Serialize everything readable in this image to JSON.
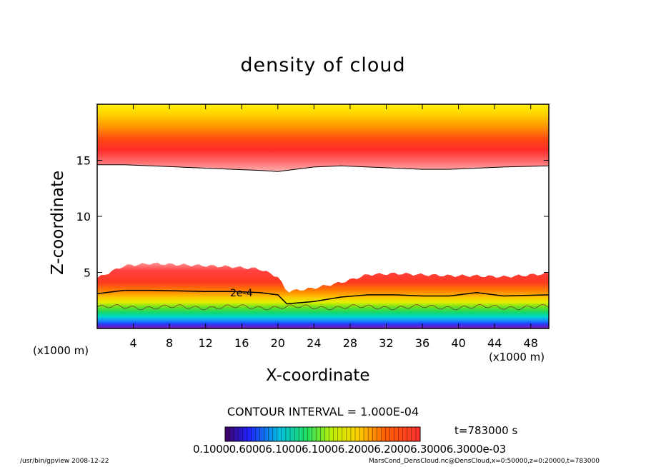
{
  "chart_data": {
    "type": "heatmap",
    "title": "density of cloud",
    "xlabel": "X-coordinate",
    "ylabel": "Z-coordinate",
    "x_unit_left": "(x1000 m)",
    "x_unit_right": "(x1000 m)",
    "xlim": [
      0,
      50
    ],
    "ylim": [
      0,
      20
    ],
    "x_ticks": [
      "4",
      "8",
      "12",
      "16",
      "20",
      "24",
      "28",
      "32",
      "36",
      "40",
      "44",
      "48"
    ],
    "y_ticks": [
      "5",
      "10",
      "15"
    ],
    "contour_interval": "CONTOUR INTERVAL = 1.000E-04",
    "contour_labels": [
      "2e-4"
    ],
    "time": "t=783000 s",
    "colorbar_labels_text": "0.10000.60006.10006.10006.20006.20006.30006.3000e-03",
    "colors": {
      "upper_band": [
        "#fff200",
        "#ffcc00",
        "#ff9900",
        "#ff5a00",
        "#ff2e2e",
        "#ff5c5c",
        "#ff9a9a"
      ],
      "lower_band": [
        "#ff8a8a",
        "#ff4040",
        "#ff6600",
        "#ffaa00",
        "#ffe000",
        "#b8f000",
        "#22dd44",
        "#00e0c0",
        "#20a0ff",
        "#2040ff",
        "#5020c0",
        "#8020d0"
      ]
    },
    "upper_boundary_z": [
      14.6,
      14.6,
      14.5,
      14.4,
      14.3,
      14.2,
      14.1,
      14.0,
      14.1,
      14.4,
      14.5,
      14.4,
      14.3,
      14.2,
      14.2,
      14.3,
      14.4,
      14.5
    ],
    "lower_top_z": [
      4.5,
      5.6,
      5.8,
      5.7,
      5.6,
      5.5,
      5.3,
      4.6,
      3.3,
      3.6,
      4.1,
      4.8,
      4.9,
      4.8,
      4.7,
      4.7,
      4.6,
      4.9
    ],
    "contour_2e4_z": [
      3.1,
      3.4,
      3.4,
      3.35,
      3.3,
      3.3,
      3.2,
      3.0,
      2.2,
      2.4,
      2.8,
      3.0,
      3.0,
      2.9,
      2.9,
      3.2,
      2.9,
      3.0
    ],
    "profile_x": [
      0,
      3,
      6,
      9,
      12,
      15,
      18,
      20,
      21,
      24,
      27,
      30,
      33,
      36,
      39,
      42,
      45,
      50
    ]
  },
  "footer": {
    "left": "/usr/bin/gpview   2008-12-22",
    "right": "MarsCond_DensCloud.nc@DensCloud,x=0:50000,z=0:20000,t=783000"
  }
}
